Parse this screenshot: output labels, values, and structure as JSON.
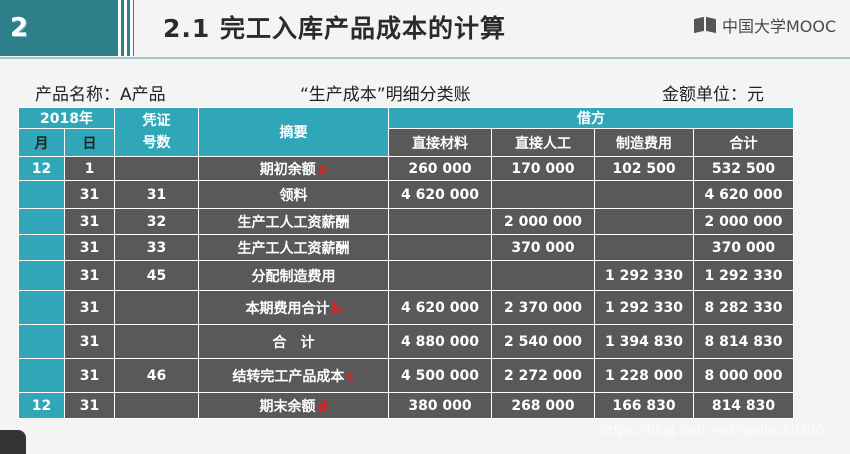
{
  "slide": {
    "number": "2",
    "title": "2.1 完工入库产品成本的计算",
    "logo_text": "中国大学MOOC"
  },
  "captions": {
    "product": "产品名称：A产品",
    "ledger": "“生产成本”明细分类账",
    "unit": "金额单位：元"
  },
  "table": {
    "headers": {
      "year": "2018年",
      "voucher": "凭证\n号数",
      "summary": "摘要",
      "debit": "借方",
      "month": "月",
      "day": "日",
      "columns": [
        "直接材料",
        "直接人工",
        "制造费用",
        "合计"
      ]
    },
    "rows": [
      {
        "month": "12",
        "day": "1",
        "voucher": "",
        "summary": "期初余额",
        "mark": "a",
        "material": "260 000",
        "labor": "170 000",
        "overhead": "102 500",
        "total": "532 500"
      },
      {
        "month": "",
        "day": "31",
        "voucher": "31",
        "summary": "领料",
        "mark": "",
        "material": "4 620 000",
        "labor": "",
        "overhead": "",
        "total": "4 620 000"
      },
      {
        "month": "",
        "day": "31",
        "voucher": "32",
        "summary": "生产工人工资薪酬",
        "mark": "",
        "material": "",
        "labor": "2 000 000",
        "overhead": "",
        "total": "2 000 000"
      },
      {
        "month": "",
        "day": "31",
        "voucher": "33",
        "summary": "生产工人工资薪酬",
        "mark": "",
        "material": "",
        "labor": "370 000",
        "overhead": "",
        "total": "370 000"
      },
      {
        "month": "",
        "day": "31",
        "voucher": "45",
        "summary": "分配制造费用",
        "mark": "",
        "material": "",
        "labor": "",
        "overhead": "1 292 330",
        "total": "1 292 330"
      },
      {
        "month": "",
        "day": "31",
        "voucher": "",
        "summary": "本期费用合计",
        "mark": "b",
        "material": "4 620 000",
        "labor": "2 370 000",
        "overhead": "1 292 330",
        "total": "8 282 330"
      },
      {
        "month": "",
        "day": "31",
        "voucher": "",
        "summary": "合　计",
        "mark": "",
        "material": "4 880 000",
        "labor": "2 540 000",
        "overhead": "1 394 830",
        "total": "8 814 830"
      },
      {
        "month": "",
        "day": "31",
        "voucher": "46",
        "summary": "结转完工产品成本",
        "mark": "c",
        "material": "4 500 000",
        "labor": "2 272 000",
        "overhead": "1 228 000",
        "total": "8 000 000"
      },
      {
        "month": "12",
        "day": "31",
        "voucher": "",
        "summary": "期末余额",
        "mark": "d",
        "material": "380 000",
        "labor": "268 000",
        "overhead": "166 830",
        "total": "814 830"
      }
    ]
  },
  "watermark": "https://blog.csdn.net/hpdlzu80100",
  "colors": {
    "teal": "#2fa7b8",
    "dark_cell": "#595959",
    "badge": "#2f7f8a",
    "mark_red": "#e02020"
  }
}
